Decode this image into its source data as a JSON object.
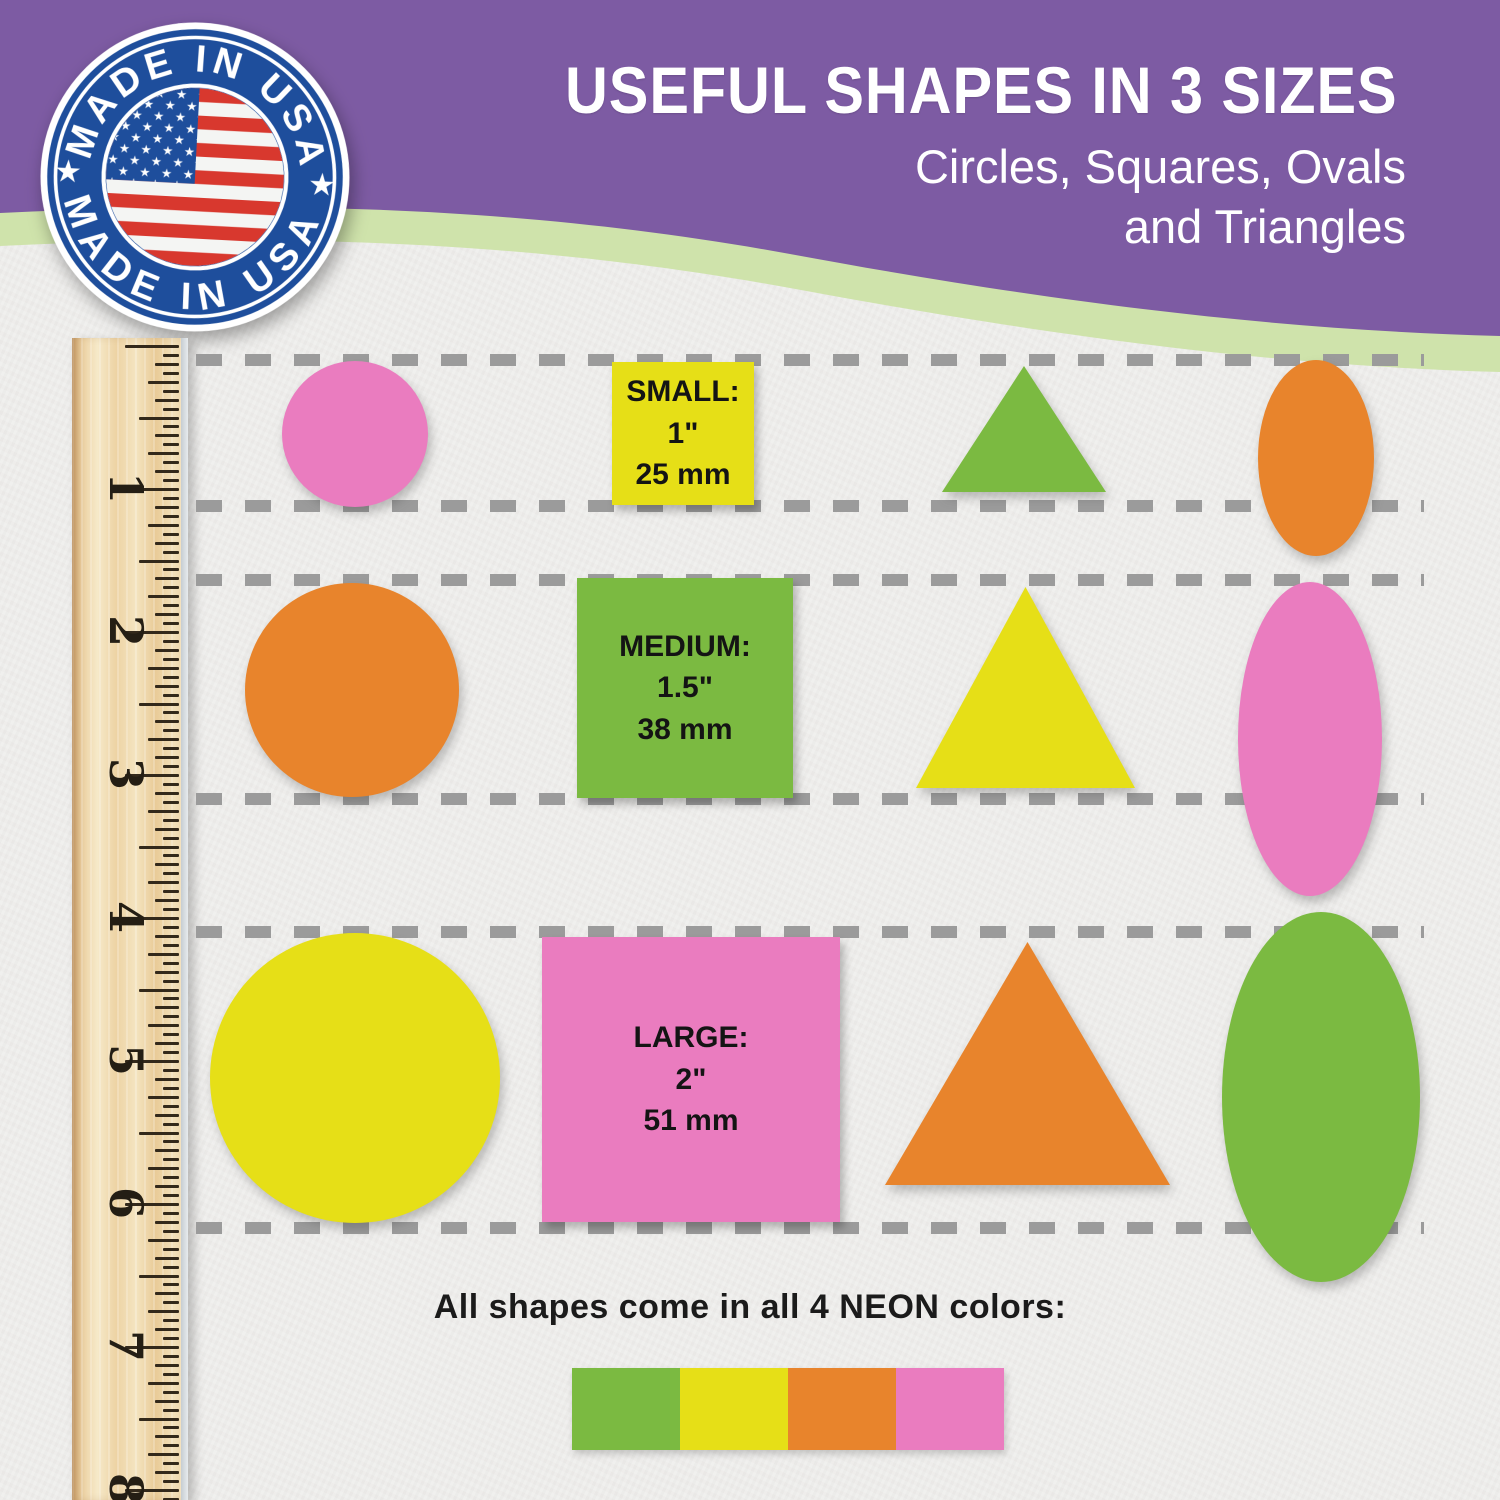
{
  "header": {
    "title": "USEFUL SHAPES IN 3 SIZES",
    "subtitle_line1": "Circles, Squares, Ovals",
    "subtitle_line2": "and Triangles",
    "colors": {
      "purple": "#7d5ba3",
      "green_band": "#cfe3ab"
    }
  },
  "badge": {
    "top_text": "MADE IN USA",
    "bottom_text": "MADE IN USA",
    "star": "★",
    "colors": {
      "blue": "#1e4e9c",
      "red": "#d8382e",
      "white": "#ffffff"
    }
  },
  "ruler": {
    "numbers": [
      "1",
      "2",
      "3",
      "4",
      "5",
      "6",
      "7",
      "8"
    ]
  },
  "colors": {
    "green": "#7bba41",
    "yellow": "#e6df17",
    "orange": "#e8842c",
    "pink": "#ea7cbf"
  },
  "rows": [
    {
      "size_label": "SMALL:",
      "inches": "1\"",
      "millimeters": "25 mm",
      "shapes": {
        "circle": "pink",
        "square": "yellow",
        "triangle": "green",
        "oval": "orange"
      }
    },
    {
      "size_label": "MEDIUM:",
      "inches": "1.5\"",
      "millimeters": "38 mm",
      "shapes": {
        "circle": "orange",
        "square": "green",
        "triangle": "yellow",
        "oval": "pink"
      }
    },
    {
      "size_label": "LARGE:",
      "inches": "2\"",
      "millimeters": "51 mm",
      "shapes": {
        "circle": "yellow",
        "square": "pink",
        "triangle": "orange",
        "oval": "green"
      }
    }
  ],
  "footer": {
    "text": "All shapes come in all 4 NEON colors:",
    "swatches": [
      {
        "name": "green",
        "color": "#7bba41"
      },
      {
        "name": "yellow",
        "color": "#e6df17"
      },
      {
        "name": "orange",
        "color": "#e8842c"
      },
      {
        "name": "pink",
        "color": "#ea7cbf"
      }
    ]
  }
}
